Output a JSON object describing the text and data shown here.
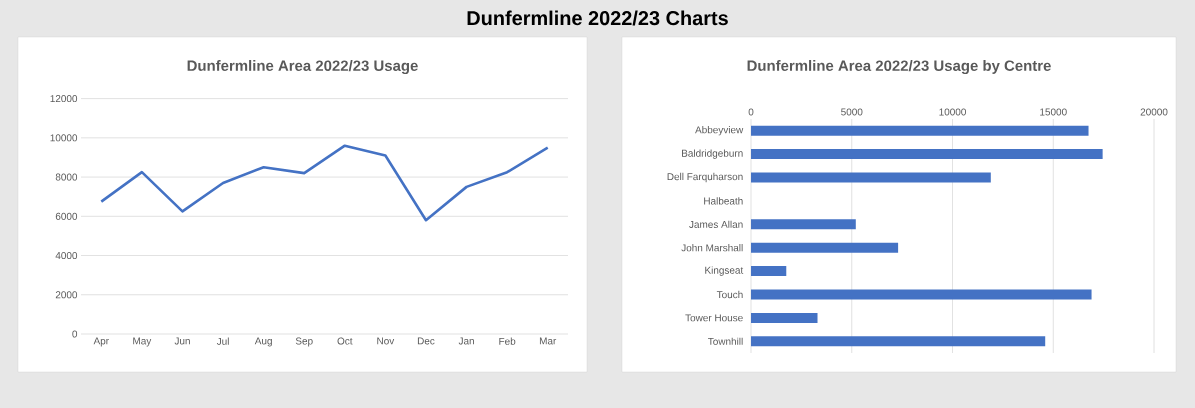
{
  "chart_data": [
    {
      "type": "line",
      "title": "Dunfermline Area 2022/23 Usage",
      "annotations": [
        "Dunfermline 2022/23 Charts"
      ],
      "categories": [
        "Apr",
        "May",
        "Jun",
        "Jul",
        "Aug",
        "Sep",
        "Oct",
        "Nov",
        "Dec",
        "Jan",
        "Feb",
        "Mar"
      ],
      "values": [
        6750,
        8250,
        6250,
        7700,
        8500,
        8200,
        9600,
        9100,
        5800,
        7500,
        8250,
        9500
      ],
      "color": "#4472c4",
      "ylim": [
        0,
        12000
      ],
      "yticks": [
        0,
        2000,
        4000,
        6000,
        8000,
        10000,
        12000
      ],
      "grid": "y"
    },
    {
      "type": "bar",
      "orientation": "horizontal",
      "title": "Dunfermline Area 2022/23 Usage by Centre",
      "categories": [
        "Abbeyview",
        "Baldridgeburn",
        "Dell Farquharson",
        "Halbeath",
        "James Allan",
        "John Marshall",
        "Kingseat",
        "Touch",
        "Tower House",
        "Townhill"
      ],
      "values": [
        16750,
        17450,
        11900,
        null,
        5200,
        7300,
        1750,
        16900,
        3300,
        14600
      ],
      "color": "#4472c4",
      "xlim": [
        0,
        20000
      ],
      "xticks": [
        0,
        5000,
        10000,
        15000,
        20000
      ],
      "grid": "x"
    }
  ]
}
